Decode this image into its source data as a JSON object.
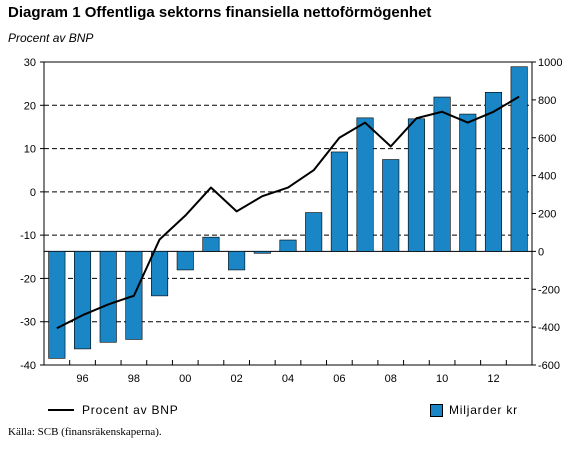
{
  "title": "Diagram 1 Offentliga sektorns finansiella nettoförmögenhet",
  "subtitle": "Procent av BNP",
  "source": "Källa: SCB (finansräkenskaperna).",
  "colors": {
    "bar": "#1a86c6",
    "line": "#000000",
    "grid": "#000000"
  },
  "chart_data": {
    "type": "bar+line",
    "title": "Diagram 1 Offentliga sektorns finansiella nettoförmögenhet",
    "x": [
      1995,
      1996,
      1997,
      1998,
      1999,
      2000,
      2001,
      2002,
      2003,
      2004,
      2005,
      2006,
      2007,
      2008,
      2009,
      2010,
      2011,
      2012,
      2013
    ],
    "x_tick_labels": [
      "96",
      "98",
      "00",
      "02",
      "04",
      "06",
      "08",
      "10",
      "12"
    ],
    "x_tick_years": [
      1996,
      1998,
      2000,
      2002,
      2004,
      2006,
      2008,
      2010,
      2012
    ],
    "left_axis": {
      "label": "Procent av BNP",
      "ylim": [
        -40,
        30
      ],
      "ticks": [
        -40,
        -30,
        -20,
        -10,
        0,
        10,
        20,
        30
      ]
    },
    "right_axis": {
      "label": "",
      "ylim": [
        -600,
        1000
      ],
      "ticks": [
        -600,
        -400,
        -200,
        0,
        200,
        400,
        600,
        800,
        1000
      ]
    },
    "grid": "dashed horizontal, left-axis ticks",
    "legend_position": "bottom",
    "series": [
      {
        "name": "Procent av BNP",
        "type": "line",
        "axis": "left",
        "values": [
          -31.5,
          -28.5,
          -26,
          -24,
          -11,
          -5.5,
          1,
          -4.5,
          -1,
          1,
          5,
          12.5,
          16,
          10.5,
          17,
          18.5,
          16,
          18.5,
          22
        ]
      },
      {
        "name": "Miljarder kr",
        "type": "bar",
        "axis": "right",
        "values": [
          -565,
          -515,
          -480,
          -465,
          -235,
          -98,
          75,
          -98,
          -10,
          60,
          205,
          525,
          705,
          485,
          700,
          815,
          725,
          840,
          975
        ]
      }
    ]
  },
  "legend": {
    "line_label": "Procent av BNP",
    "bar_label": "Miljarder kr"
  }
}
